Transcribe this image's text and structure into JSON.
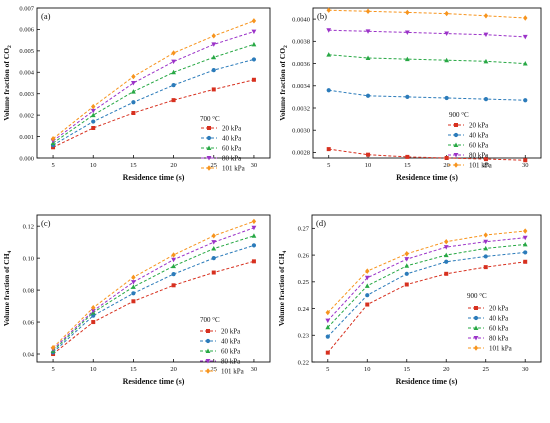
{
  "series_colors": [
    "#d7301f",
    "#2b7bba",
    "#27a844",
    "#9b32c8",
    "#f7941d"
  ],
  "series_markers": [
    "square",
    "circle",
    "triangle-up",
    "triangle-down",
    "diamond"
  ],
  "chart_data": [
    {
      "panel_label": "(a)",
      "type": "line",
      "line_style": "dashed",
      "annotation": "700 °C",
      "xlabel": "Residence time (s)",
      "ylabel_main": "Volume fraction of CO",
      "ylabel_sub": "2",
      "x": [
        5,
        10,
        15,
        20,
        25,
        30
      ],
      "xticks": [
        5,
        10,
        15,
        20,
        25,
        30
      ],
      "xlim": [
        3,
        32
      ],
      "ylim": [
        0,
        0.007
      ],
      "yticks": [
        0.0,
        0.001,
        0.002,
        0.003,
        0.004,
        0.005,
        0.006,
        0.007
      ],
      "ytick_labels": [
        "0.000",
        "0.001",
        "0.002",
        "0.003",
        "0.004",
        "0.005",
        "0.006",
        "0.007"
      ],
      "legend_position": "center-right",
      "series": [
        {
          "name": "20 kPa",
          "values": [
            0.0005,
            0.0014,
            0.0021,
            0.0027,
            0.0032,
            0.00365
          ]
        },
        {
          "name": "40 kPa",
          "values": [
            0.0006,
            0.0017,
            0.0026,
            0.0034,
            0.0041,
            0.0046
          ]
        },
        {
          "name": "60 kPa",
          "values": [
            0.0007,
            0.002,
            0.0031,
            0.004,
            0.0047,
            0.0053
          ]
        },
        {
          "name": "80 kPa",
          "values": [
            0.0008,
            0.0022,
            0.0035,
            0.0045,
            0.0053,
            0.0059
          ]
        },
        {
          "name": "101 kPa",
          "values": [
            0.0009,
            0.0024,
            0.0038,
            0.0049,
            0.0057,
            0.0064
          ]
        }
      ]
    },
    {
      "panel_label": "(b)",
      "type": "line",
      "line_style": "dashed",
      "annotation": "900 °C",
      "xlabel": "Residence time (s)",
      "ylabel_main": "Volume fraction of CO",
      "ylabel_sub": "2",
      "x": [
        5,
        10,
        15,
        20,
        25,
        30
      ],
      "xticks": [
        5,
        10,
        15,
        20,
        25,
        30
      ],
      "xlim": [
        3,
        32
      ],
      "ylim": [
        0.00275,
        0.0041
      ],
      "yticks": [
        0.0028,
        0.003,
        0.0032,
        0.0034,
        0.0036,
        0.0038,
        0.004
      ],
      "ytick_labels": [
        "0.0028",
        "0.0030",
        "0.0032",
        "0.0034",
        "0.0036",
        "0.0038",
        "0.0040"
      ],
      "legend_position": "center-right",
      "series": [
        {
          "name": "20 kPa",
          "values": [
            0.00283,
            0.00278,
            0.00276,
            0.00275,
            0.00274,
            0.00273
          ]
        },
        {
          "name": "40 kPa",
          "values": [
            0.00336,
            0.00331,
            0.0033,
            0.00329,
            0.00328,
            0.00327
          ]
        },
        {
          "name": "60 kPa",
          "values": [
            0.00368,
            0.00365,
            0.00364,
            0.00363,
            0.00362,
            0.0036
          ]
        },
        {
          "name": "80 kPa",
          "values": [
            0.0039,
            0.00389,
            0.00388,
            0.00387,
            0.00386,
            0.00384
          ]
        },
        {
          "name": "101 kPa",
          "values": [
            0.00408,
            0.00407,
            0.00406,
            0.00405,
            0.00403,
            0.00401
          ]
        }
      ]
    },
    {
      "panel_label": "(c)",
      "type": "line",
      "line_style": "dashed",
      "annotation": "700 °C",
      "xlabel": "Residence time (s)",
      "ylabel_main": "Volume fraction of CH",
      "ylabel_sub": "4",
      "x": [
        5,
        10,
        15,
        20,
        25,
        30
      ],
      "xticks": [
        5,
        10,
        15,
        20,
        25,
        30
      ],
      "xlim": [
        3,
        32
      ],
      "ylim": [
        0.035,
        0.127
      ],
      "yticks": [
        0.04,
        0.06,
        0.08,
        0.1,
        0.12
      ],
      "ytick_labels": [
        "0.04",
        "0.06",
        "0.08",
        "0.10",
        "0.12"
      ],
      "legend_position": "center-right",
      "series": [
        {
          "name": "20 kPa",
          "values": [
            0.04,
            0.06,
            0.073,
            0.083,
            0.091,
            0.098
          ]
        },
        {
          "name": "40 kPa",
          "values": [
            0.041,
            0.064,
            0.078,
            0.09,
            0.1,
            0.108
          ]
        },
        {
          "name": "60 kPa",
          "values": [
            0.042,
            0.066,
            0.082,
            0.095,
            0.106,
            0.114
          ]
        },
        {
          "name": "80 kPa",
          "values": [
            0.043,
            0.067,
            0.085,
            0.099,
            0.11,
            0.119
          ]
        },
        {
          "name": "101 kPa",
          "values": [
            0.044,
            0.069,
            0.088,
            0.102,
            0.114,
            0.123
          ]
        }
      ]
    },
    {
      "panel_label": "(d)",
      "type": "line",
      "line_style": "dashed",
      "annotation": "900 °C",
      "xlabel": "Residence time (s)",
      "ylabel_main": "Volume fraction of CH",
      "ylabel_sub": "4",
      "x": [
        5,
        10,
        15,
        20,
        25,
        30
      ],
      "xticks": [
        5,
        10,
        15,
        20,
        25,
        30
      ],
      "xlim": [
        3,
        32
      ],
      "ylim": [
        0.22,
        0.275
      ],
      "yticks": [
        0.22,
        0.23,
        0.24,
        0.25,
        0.26,
        0.27
      ],
      "ytick_labels": [
        "0.22",
        "0.23",
        "0.24",
        "0.25",
        "0.26",
        "0.27"
      ],
      "legend_position": "lower-right",
      "series": [
        {
          "name": "20 kPa",
          "values": [
            0.2235,
            0.2415,
            0.249,
            0.253,
            0.2555,
            0.2575
          ]
        },
        {
          "name": "40 kPa",
          "values": [
            0.2295,
            0.245,
            0.253,
            0.2575,
            0.2595,
            0.261
          ]
        },
        {
          "name": "60 kPa",
          "values": [
            0.233,
            0.2485,
            0.256,
            0.26,
            0.2625,
            0.264
          ]
        },
        {
          "name": "80 kPa",
          "values": [
            0.2355,
            0.2515,
            0.2585,
            0.263,
            0.265,
            0.2665
          ]
        },
        {
          "name": "101 kPa",
          "values": [
            0.2385,
            0.254,
            0.2605,
            0.265,
            0.2675,
            0.269
          ]
        }
      ]
    }
  ]
}
